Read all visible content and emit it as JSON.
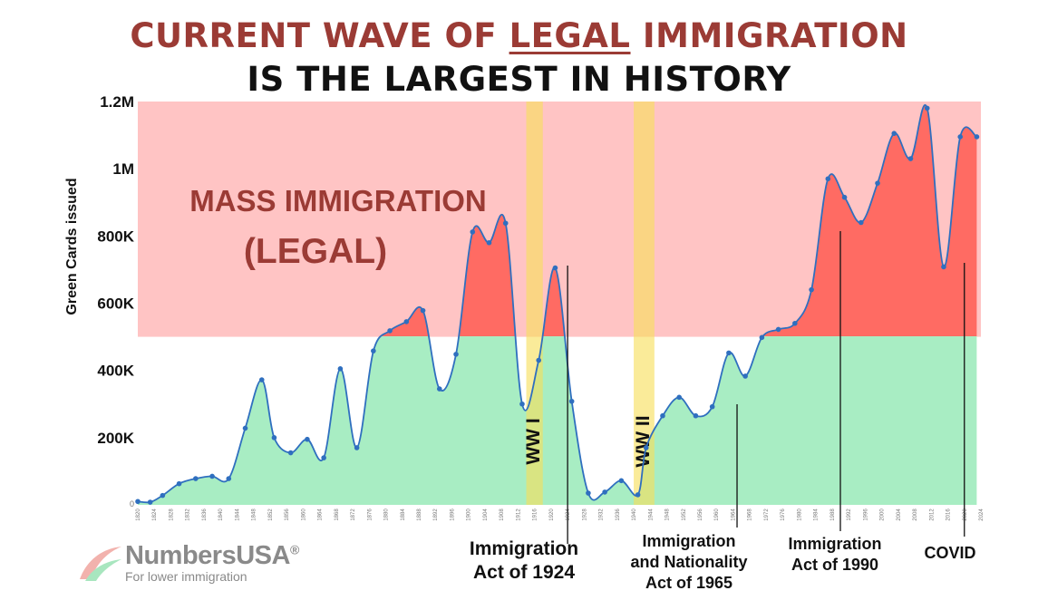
{
  "header": {
    "title_prefix": "CURRENT WAVE OF ",
    "title_highlight": "LEGAL",
    "title_suffix": " IMMIGRATION",
    "subtitle": "IS THE LARGEST IN HISTORY"
  },
  "colors": {
    "red_band": "#ffc4c4",
    "red_fill": "#ff6b63",
    "green_fill": "#a8edc3",
    "line": "#2f6fbf",
    "war_band": "#f7df5a",
    "title_red": "#9b3b35"
  },
  "chart_data": {
    "type": "area",
    "ylabel": "Green Cards issued",
    "ylim": [
      0,
      1200000
    ],
    "threshold": 500000,
    "y_ticks": [
      {
        "value": 1200000,
        "label": "1.2M"
      },
      {
        "value": 1000000,
        "label": "1M"
      },
      {
        "value": 800000,
        "label": "800K"
      },
      {
        "value": 600000,
        "label": "600K"
      },
      {
        "value": 400000,
        "label": "400K"
      },
      {
        "value": 200000,
        "label": "200K"
      },
      {
        "value": 0,
        "label": "0"
      }
    ],
    "x_tick_labels": [
      "1820",
      "1824",
      "1828",
      "1832",
      "1836",
      "1840",
      "1844",
      "1848",
      "1852",
      "1856",
      "1860",
      "1864",
      "1868",
      "1872",
      "1876",
      "1880",
      "1884",
      "1888",
      "1892",
      "1896",
      "1900",
      "1904",
      "1908",
      "1912",
      "1916",
      "1920",
      "1924",
      "1928",
      "1932",
      "1936",
      "1940",
      "1944",
      "1948",
      "1952",
      "1956",
      "1960",
      "1964",
      "1968",
      "1972",
      "1976",
      "1980",
      "1984",
      "1988",
      "1992",
      "1996",
      "2000",
      "2004",
      "2008",
      "2012",
      "2016",
      "2020",
      "2024"
    ],
    "x": [
      1820,
      1823,
      1826,
      1830,
      1834,
      1838,
      1842,
      1846,
      1850,
      1853,
      1857,
      1861,
      1865,
      1869,
      1873,
      1877,
      1881,
      1885,
      1889,
      1893,
      1897,
      1901,
      1905,
      1909,
      1913,
      1917,
      1921,
      1925,
      1929,
      1933,
      1937,
      1941,
      1943,
      1947,
      1951,
      1955,
      1959,
      1963,
      1967,
      1971,
      1975,
      1979,
      1983,
      1987,
      1991,
      1995,
      1999,
      2003,
      2007,
      2011,
      2015,
      2019,
      2023
    ],
    "values": [
      10000,
      8000,
      28000,
      63000,
      78000,
      85000,
      78000,
      228000,
      372000,
      200000,
      155000,
      195000,
      140000,
      405000,
      170000,
      458000,
      518000,
      545000,
      578000,
      345000,
      448000,
      812000,
      780000,
      838000,
      300000,
      430000,
      705000,
      308000,
      35000,
      38000,
      72000,
      30000,
      170000,
      265000,
      320000,
      265000,
      292000,
      452000,
      383000,
      498000,
      522000,
      540000,
      640000,
      970000,
      915000,
      840000,
      957000,
      1105000,
      1030000,
      1180000,
      708000,
      1095000,
      1095000
    ],
    "zone_label_line1": "MASS IMMIGRATION",
    "zone_label_line2": "(LEGAL)",
    "wars": [
      {
        "label": "WW I",
        "from": 1914,
        "to": 1918
      },
      {
        "label": "WW II",
        "from": 1940,
        "to": 1945
      }
    ],
    "annotations": [
      {
        "lines": [
          "Immigration",
          "Act of 1924"
        ],
        "year": 1924
      },
      {
        "lines": [
          "Immigration",
          "and Nationality",
          "Act of 1965"
        ],
        "year": 1965
      },
      {
        "lines": [
          "Immigration",
          "Act of 1990"
        ],
        "year": 1990
      },
      {
        "lines": [
          "COVID"
        ],
        "year": 2020
      }
    ]
  },
  "logo": {
    "name": "NumbersUSA",
    "trademark": "®",
    "tagline": "For lower immigration"
  }
}
